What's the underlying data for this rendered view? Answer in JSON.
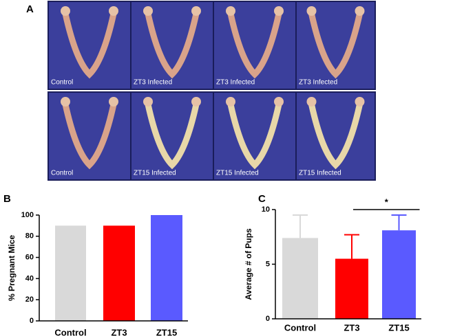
{
  "panel_a": {
    "label": "A",
    "images": [
      "Control",
      "ZT3 Infected",
      "ZT3 Infected",
      "ZT3 Infected",
      "Control",
      "ZT15 Infected",
      "ZT15 Infected",
      "ZT15 Infected"
    ]
  },
  "chart_data": [
    {
      "type": "bar",
      "label": "B",
      "y_label": "% Pregnant Mice",
      "categories": [
        "Control",
        "ZT3",
        "ZT15"
      ],
      "values": [
        90,
        90,
        100
      ],
      "colors": [
        "#d9d9d9",
        "#ff0000",
        "#5a5aff"
      ],
      "ylim": [
        0,
        100
      ],
      "yticks": [
        0,
        20,
        40,
        60,
        80,
        100
      ]
    },
    {
      "type": "bar",
      "label": "C",
      "y_label": "Average # of Pups",
      "categories": [
        "Control",
        "ZT3",
        "ZT15"
      ],
      "values": [
        7.4,
        5.5,
        8.1
      ],
      "errors": [
        2.1,
        2.2,
        1.4
      ],
      "colors": [
        "#d9d9d9",
        "#ff0000",
        "#5a5aff"
      ],
      "ylim": [
        0,
        10
      ],
      "yticks": [
        0,
        5,
        10
      ],
      "annotations": [
        {
          "text": "*",
          "between": [
            "ZT3",
            "ZT15"
          ]
        }
      ]
    }
  ]
}
